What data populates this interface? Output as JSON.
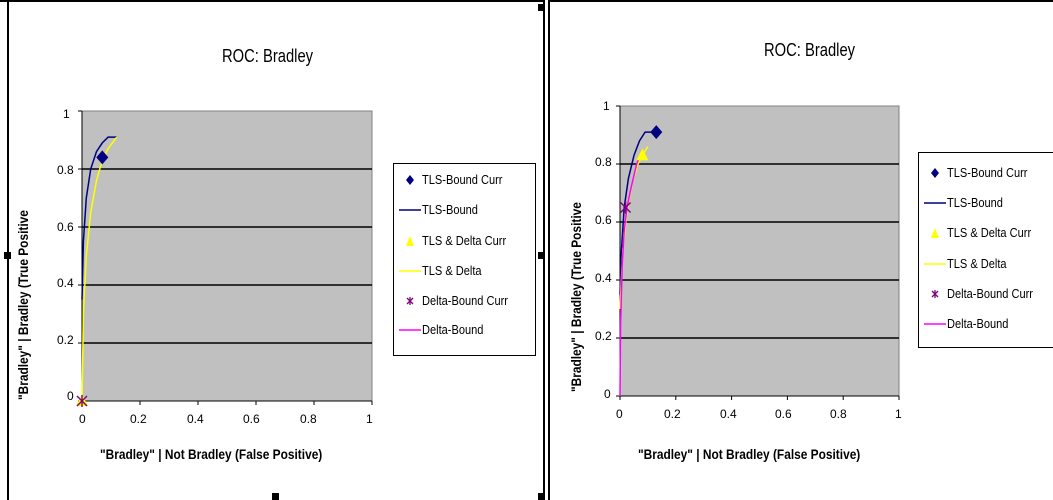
{
  "charts": [
    {
      "title": "ROC: Bradley",
      "xlabel": "\"Bradley\" | Not Bradley (False Positive)",
      "ylabel": "\"Bradley\" | Bradley (True Positive",
      "x_ticks": [
        "0",
        "0.2",
        "0.4",
        "0.6",
        "0.8",
        "1"
      ],
      "y_ticks": [
        "0",
        "0.2",
        "0.4",
        "0.6",
        "0.8",
        "1"
      ],
      "legend": [
        "TLS-Bound Curr",
        "TLS-Bound",
        "TLS & Delta Curr",
        "TLS & Delta",
        "Delta-Bound Curr",
        "Delta-Bound"
      ]
    },
    {
      "title": "ROC: Bradley",
      "xlabel": "\"Bradley\" | Not Bradley (False Positive)",
      "ylabel": "\"Bradley\" | Bradley (True Positive",
      "x_ticks": [
        "0",
        "0.2",
        "0.4",
        "0.6",
        "0.8",
        "1"
      ],
      "y_ticks": [
        "0",
        "0.2",
        "0.4",
        "0.6",
        "0.8",
        "1"
      ],
      "legend": [
        "TLS-Bound Curr",
        "TLS-Bound",
        "TLS & Delta Curr",
        "TLS & Delta",
        "Delta-Bound Curr",
        "Delta-Bound"
      ]
    }
  ],
  "chart_data": [
    {
      "type": "line",
      "title": "ROC: Bradley",
      "xlabel": "\"Bradley\" | Not Bradley (False Positive)",
      "ylabel": "\"Bradley\" | Bradley (True Positive",
      "xlim": [
        0,
        1
      ],
      "ylim": [
        0,
        1
      ],
      "grid": "horizontal",
      "legend_position": "right",
      "plot_background": "#c0c0c0",
      "series": [
        {
          "name": "TLS-Bound Curr",
          "kind": "marker",
          "marker": "diamond",
          "color": "#000080",
          "points": [
            [
              0.07,
              0.84
            ]
          ]
        },
        {
          "name": "TLS-Bound",
          "kind": "line",
          "color": "#000080",
          "points": [
            [
              0,
              0.35
            ],
            [
              0.005,
              0.55
            ],
            [
              0.015,
              0.7
            ],
            [
              0.03,
              0.8
            ],
            [
              0.05,
              0.86
            ],
            [
              0.07,
              0.89
            ],
            [
              0.09,
              0.91
            ],
            [
              0.12,
              0.91
            ]
          ]
        },
        {
          "name": "TLS & Delta Curr",
          "kind": "marker",
          "marker": "triangle",
          "color": "#ffff00",
          "points": [
            [
              0,
              0
            ]
          ]
        },
        {
          "name": "TLS & Delta",
          "kind": "line",
          "color": "#ffff00",
          "points": [
            [
              0,
              0
            ],
            [
              0.005,
              0.3
            ],
            [
              0.015,
              0.5
            ],
            [
              0.03,
              0.65
            ],
            [
              0.05,
              0.76
            ],
            [
              0.07,
              0.83
            ],
            [
              0.09,
              0.87
            ],
            [
              0.12,
              0.91
            ]
          ]
        },
        {
          "name": "Delta-Bound Curr",
          "kind": "marker",
          "marker": "star",
          "color": "#800080",
          "points": [
            [
              0,
              0
            ]
          ]
        },
        {
          "name": "Delta-Bound",
          "kind": "line",
          "color": "#ff00ff",
          "points": [
            [
              0,
              0
            ],
            [
              0,
              0.005
            ]
          ]
        }
      ]
    },
    {
      "type": "line",
      "title": "ROC: Bradley",
      "xlabel": "\"Bradley\" | Not Bradley (False Positive)",
      "ylabel": "\"Bradley\" | Bradley (True Positive",
      "xlim": [
        0,
        1
      ],
      "ylim": [
        0,
        1
      ],
      "grid": "horizontal",
      "legend_position": "right",
      "plot_background": "#c0c0c0",
      "series": [
        {
          "name": "TLS-Bound Curr",
          "kind": "marker",
          "marker": "diamond",
          "color": "#000080",
          "points": [
            [
              0.13,
              0.91
            ]
          ]
        },
        {
          "name": "TLS-Bound",
          "kind": "line",
          "color": "#000080",
          "points": [
            [
              0,
              0.35
            ],
            [
              0.005,
              0.5
            ],
            [
              0.015,
              0.65
            ],
            [
              0.03,
              0.75
            ],
            [
              0.05,
              0.83
            ],
            [
              0.07,
              0.88
            ],
            [
              0.09,
              0.91
            ],
            [
              0.13,
              0.91
            ]
          ]
        },
        {
          "name": "TLS & Delta Curr",
          "kind": "marker",
          "marker": "triangle",
          "color": "#ffff00",
          "points": [
            [
              0.08,
              0.83
            ]
          ]
        },
        {
          "name": "TLS & Delta",
          "kind": "line",
          "color": "#ffff00",
          "points": [
            [
              0,
              0.3
            ],
            [
              0.01,
              0.5
            ],
            [
              0.025,
              0.64
            ],
            [
              0.045,
              0.74
            ],
            [
              0.065,
              0.8
            ],
            [
              0.08,
              0.83
            ],
            [
              0.1,
              0.86
            ]
          ]
        },
        {
          "name": "Delta-Bound Curr",
          "kind": "marker",
          "marker": "star",
          "color": "#800080",
          "points": [
            [
              0.02,
              0.65
            ]
          ]
        },
        {
          "name": "Delta-Bound",
          "kind": "line",
          "color": "#ff00ff",
          "points": [
            [
              0,
              0
            ],
            [
              0.002,
              0.25
            ],
            [
              0.008,
              0.45
            ],
            [
              0.015,
              0.57
            ],
            [
              0.025,
              0.65
            ],
            [
              0.04,
              0.72
            ],
            [
              0.06,
              0.8
            ],
            [
              0.08,
              0.85
            ]
          ]
        }
      ]
    }
  ]
}
